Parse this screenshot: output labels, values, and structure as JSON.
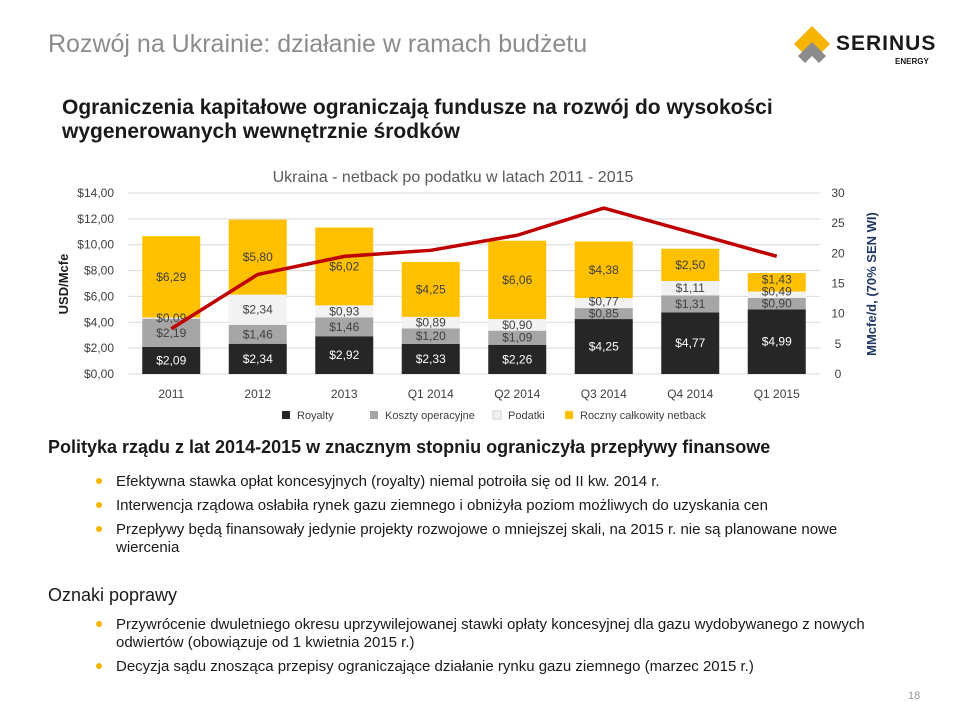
{
  "slide": {
    "title": "Rozwój na Ukrainie: działanie w ramach budżetu",
    "subtitle": "Ograniczenia kapitałowe ograniczają fundusze na rozwój do wysokości wygenerowanych wewnętrznie środków",
    "page_number": "18"
  },
  "logo": {
    "name": "SERINUS",
    "sub": "ENERGY"
  },
  "colors": {
    "royalty": "#262626",
    "opex": "#a6a6a6",
    "taxes": "#f2f2f2",
    "netback": "#ffc000",
    "line": "#c00000"
  },
  "chart_data": {
    "type": "bar",
    "stacked": true,
    "title": "Ukraina - netback po podatku w latach 2011 - 2015",
    "ylabel": "USD/Mcfe",
    "y2label": "MMcfe/d, (70% SEN WI)",
    "ylim": [
      0,
      14
    ],
    "yticks": [
      "$0,00",
      "$2,00",
      "$4,00",
      "$6,00",
      "$8,00",
      "$10,00",
      "$12,00",
      "$14,00"
    ],
    "y2lim": [
      0,
      30
    ],
    "y2ticks": [
      "0",
      "5",
      "10",
      "15",
      "20",
      "25",
      "30"
    ],
    "categories": [
      "2011",
      "2012",
      "2013",
      "Q1 2014",
      "Q2 2014",
      "Q3 2014",
      "Q4 2014",
      "Q1 2015"
    ],
    "series": [
      {
        "name": "Royalty",
        "values": [
          2.09,
          2.34,
          2.92,
          2.33,
          2.26,
          4.25,
          4.77,
          4.99
        ],
        "labels": [
          "$2,09",
          "$2,34",
          "$2,92",
          "$2,33",
          "$2,26",
          "$4,25",
          "$4,77",
          "$4,99"
        ]
      },
      {
        "name": "Koszty operacyjne",
        "values": [
          2.19,
          1.46,
          1.46,
          1.2,
          1.09,
          0.85,
          1.31,
          0.9
        ],
        "labels": [
          "$2,19",
          "$1,46",
          "$1,46",
          "$1,20",
          "$1,09",
          "$0,85",
          "$1,31",
          "$0,90"
        ]
      },
      {
        "name": "Podatki",
        "values": [
          0.09,
          2.34,
          0.93,
          0.89,
          0.9,
          0.77,
          1.11,
          0.49
        ],
        "labels": [
          "$0,09",
          "$2,34",
          "$0,93",
          "$0,89",
          "$0,90",
          "$0,77",
          "$1,11",
          "$0,49"
        ]
      },
      {
        "name": "Roczny całkowity netback",
        "values": [
          6.29,
          5.8,
          6.02,
          4.25,
          6.06,
          4.38,
          2.5,
          1.43
        ],
        "labels": [
          "$6,29",
          "$5,80",
          "$6,02",
          "$4,25",
          "$6,06",
          "$4,38",
          "$2,50",
          "$1,43"
        ]
      }
    ],
    "line": {
      "name": "Produkcja MMcfe/d",
      "values": [
        7.5,
        16.5,
        19.5,
        20.5,
        23.0,
        27.5,
        23.5,
        19.5
      ]
    }
  },
  "policy": {
    "title": "Polityka rządu z lat 2014-2015 w znacznym stopniu ograniczyła przepływy finansowe",
    "bullets": [
      "Efektywna stawka opłat koncesyjnych (royalty) niemal potroiła się od II kw. 2014 r.",
      "Interwencja rządowa osłabiła rynek gazu ziemnego i obniżyła poziom możliwych do uzyskania cen",
      "Przepływy będą finansowały jedynie projekty rozwojowe o mniejszej skali, na 2015 r. nie są planowane nowe wiercenia"
    ]
  },
  "signs": {
    "title": "Oznaki poprawy",
    "bullets": [
      "Przywrócenie dwuletniego okresu uprzywilejowanej stawki opłaty koncesyjnej dla gazu wydobywanego z nowych odwiertów (obowiązuje od 1 kwietnia 2015 r.)",
      "Decyzja sądu znosząca przepisy ograniczające działanie rynku gazu ziemnego (marzec 2015 r.)"
    ]
  }
}
